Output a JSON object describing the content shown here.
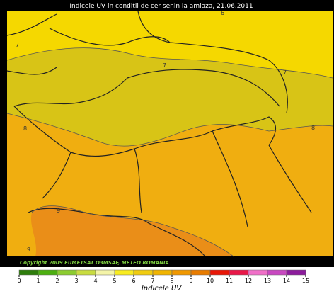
{
  "header": {
    "title": "Indicele UV in conditii de cer senin la amiaza, 21.06.2011"
  },
  "map": {
    "contour_labels": [
      "6",
      "7",
      "7",
      "7",
      "8",
      "8",
      "9",
      "9"
    ]
  },
  "footer": {
    "copyright": "Copyright 2009 EUMETSAT O3MSAF, METEO ROMANIA"
  },
  "legend": {
    "title": "Indicele UV",
    "ticks": [
      0,
      1,
      2,
      3,
      4,
      5,
      6,
      7,
      8,
      9,
      10,
      11,
      12,
      13,
      14,
      15
    ],
    "colors": [
      "#2e7d0c",
      "#4caf10",
      "#8ccc30",
      "#c8dc40",
      "#f4f4a8",
      "#f8ec20",
      "#f0cc10",
      "#f0b400",
      "#f09800",
      "#e87c00",
      "#e81808",
      "#e81848",
      "#f070c8",
      "#c848c0",
      "#8c1c9c"
    ]
  }
}
